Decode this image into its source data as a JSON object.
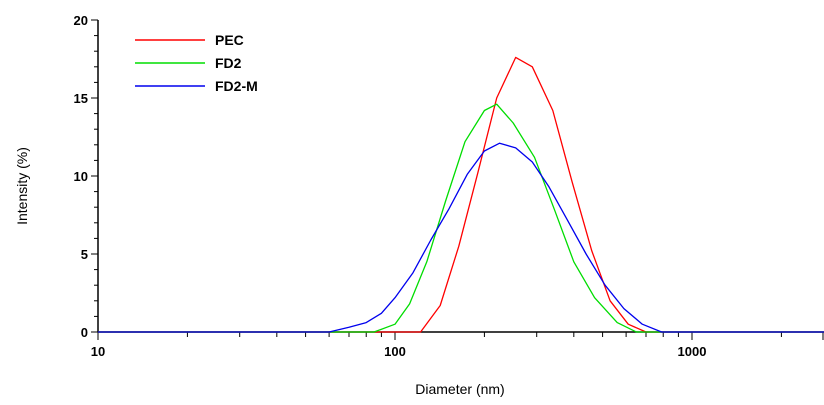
{
  "chart_data": {
    "type": "line",
    "title": "",
    "xlabel": "Diameter (nm)",
    "ylabel": "Intensity (%)",
    "x_scale": "log",
    "xlim": [
      10,
      2800
    ],
    "ylim": [
      0,
      20
    ],
    "x_ticks": [
      10,
      100,
      1000
    ],
    "x_tick_labels": [
      "10",
      "100",
      "1000"
    ],
    "y_ticks": [
      0,
      5,
      10,
      15,
      20
    ],
    "y_tick_labels": [
      "0",
      "5",
      "10",
      "15",
      "20"
    ],
    "grid": false,
    "legend_position": "top-left",
    "series": [
      {
        "name": "PEC",
        "color": "#ff0000",
        "points": [
          [
            10,
            0
          ],
          [
            122,
            0
          ],
          [
            142,
            1.7
          ],
          [
            164,
            5.5
          ],
          [
            190,
            10.2
          ],
          [
            220,
            15.0
          ],
          [
            255,
            17.6
          ],
          [
            290,
            17.0
          ],
          [
            340,
            14.2
          ],
          [
            395,
            9.6
          ],
          [
            460,
            5.2
          ],
          [
            530,
            2.0
          ],
          [
            610,
            0.5
          ],
          [
            700,
            0
          ],
          [
            2800,
            0
          ]
        ]
      },
      {
        "name": "FD2",
        "color": "#00dd00",
        "points": [
          [
            10,
            0
          ],
          [
            85,
            0
          ],
          [
            100,
            0.5
          ],
          [
            112,
            1.8
          ],
          [
            128,
            4.5
          ],
          [
            148,
            8.4
          ],
          [
            172,
            12.2
          ],
          [
            200,
            14.2
          ],
          [
            220,
            14.6
          ],
          [
            250,
            13.4
          ],
          [
            295,
            11.2
          ],
          [
            345,
            7.8
          ],
          [
            400,
            4.5
          ],
          [
            470,
            2.2
          ],
          [
            560,
            0.6
          ],
          [
            650,
            0
          ],
          [
            2800,
            0
          ]
        ]
      },
      {
        "name": "FD2-M",
        "color": "#0000ee",
        "points": [
          [
            10,
            0
          ],
          [
            60,
            0
          ],
          [
            70,
            0.3
          ],
          [
            80,
            0.6
          ],
          [
            90,
            1.2
          ],
          [
            100,
            2.2
          ],
          [
            115,
            3.8
          ],
          [
            132,
            5.9
          ],
          [
            152,
            7.9
          ],
          [
            175,
            10.1
          ],
          [
            200,
            11.6
          ],
          [
            225,
            12.1
          ],
          [
            255,
            11.8
          ],
          [
            290,
            10.9
          ],
          [
            330,
            9.3
          ],
          [
            380,
            7.2
          ],
          [
            440,
            5.0
          ],
          [
            510,
            3.0
          ],
          [
            590,
            1.5
          ],
          [
            680,
            0.5
          ],
          [
            790,
            0
          ],
          [
            2800,
            0
          ]
        ]
      }
    ]
  }
}
